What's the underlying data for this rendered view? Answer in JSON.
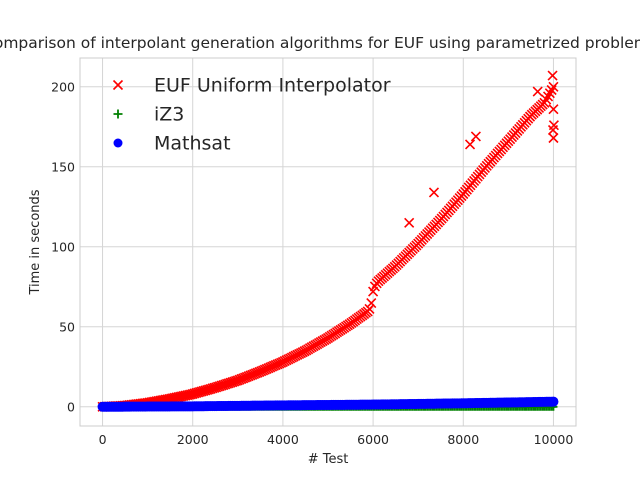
{
  "chart_data": {
    "type": "scatter",
    "title": "Comparison of interpolant generation algorithms for EUF using parametrized problems",
    "xlabel": "# Test",
    "ylabel": "Time in seconds",
    "xlim": [
      -500,
      10500
    ],
    "ylim": [
      -12,
      218
    ],
    "xticks": [
      0,
      2000,
      4000,
      6000,
      8000,
      10000
    ],
    "yticks": [
      0,
      50,
      100,
      150,
      200
    ],
    "grid": true,
    "legend": "upper-left",
    "series": [
      {
        "name": "EUF Uniform Interpolator",
        "marker": "x",
        "color": "#ff0000",
        "x": [
          0,
          500,
          1000,
          1500,
          2000,
          2500,
          3000,
          3500,
          4000,
          4500,
          5000,
          5500,
          5900,
          5950,
          6000,
          6050,
          6100,
          6500,
          7000,
          7500,
          8000,
          8500,
          9000,
          9500,
          9800,
          9900,
          10000
        ],
        "y": [
          0,
          0.8,
          2.5,
          5.0,
          8.0,
          12.0,
          16.5,
          22.0,
          28.0,
          35.0,
          43.0,
          52.0,
          60.0,
          63.0,
          72.0,
          76.0,
          78.0,
          88.0,
          102.0,
          117.0,
          133.0,
          150.0,
          166.0,
          182.0,
          190.0,
          195.0,
          200.0
        ],
        "outliers": [
          {
            "x": 6800,
            "y": 115
          },
          {
            "x": 7350,
            "y": 134
          },
          {
            "x": 8150,
            "y": 164
          },
          {
            "x": 8280,
            "y": 169
          },
          {
            "x": 9650,
            "y": 197
          },
          {
            "x": 9980,
            "y": 207
          },
          {
            "x": 10000,
            "y": 186
          },
          {
            "x": 10010,
            "y": 176
          },
          {
            "x": 9990,
            "y": 173
          },
          {
            "x": 10000,
            "y": 168
          }
        ]
      },
      {
        "name": "iZ3",
        "marker": "+",
        "color": "#008000",
        "x": [
          0,
          2000,
          4000,
          6000,
          8000,
          10000
        ],
        "y": [
          0,
          0,
          0,
          0,
          0,
          0
        ]
      },
      {
        "name": "Mathsat",
        "marker": "o",
        "color": "#0000ff",
        "x": [
          0,
          2000,
          4000,
          6000,
          8000,
          10000
        ],
        "y": [
          0,
          0.3,
          0.9,
          1.4,
          2.2,
          3.2
        ]
      }
    ]
  }
}
